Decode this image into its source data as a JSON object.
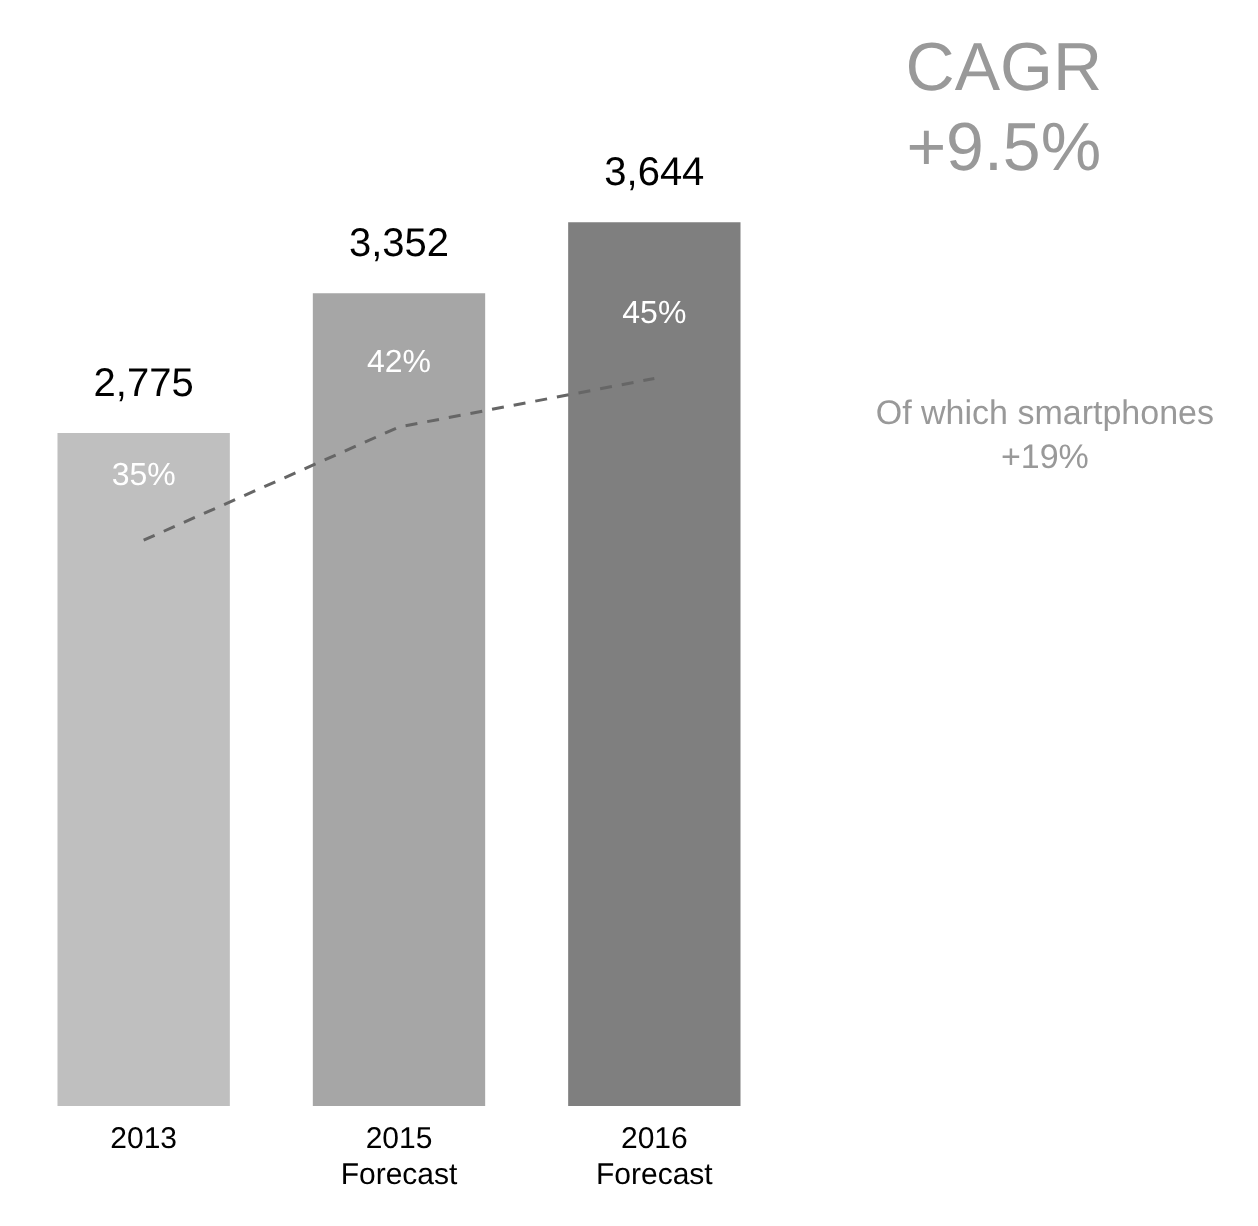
{
  "chart_data": {
    "type": "bar",
    "categories": [
      "2013",
      "2015\nForecast",
      "2016\nForecast"
    ],
    "series": [
      {
        "colors": [
          "#bfbfbf",
          "#a6a6a6",
          "#7f7f7f"
        ],
        "values": [
          2775,
          3352,
          3644
        ],
        "value_labels": [
          "2,775",
          "3,352",
          "3,644"
        ]
      },
      {
        "type": "line",
        "axis": "y2",
        "color": "#666666",
        "line_style": "dashed",
        "marker": "none",
        "values": [
          35,
          42,
          45
        ],
        "value_labels": [
          "35%",
          "42%",
          "45%"
        ]
      }
    ],
    "annotations": [
      "CAGR\n+9.5%",
      "Of which smartphones\n+19%"
    ],
    "tick_labels": "x",
    "grid": false,
    "legend": false
  }
}
